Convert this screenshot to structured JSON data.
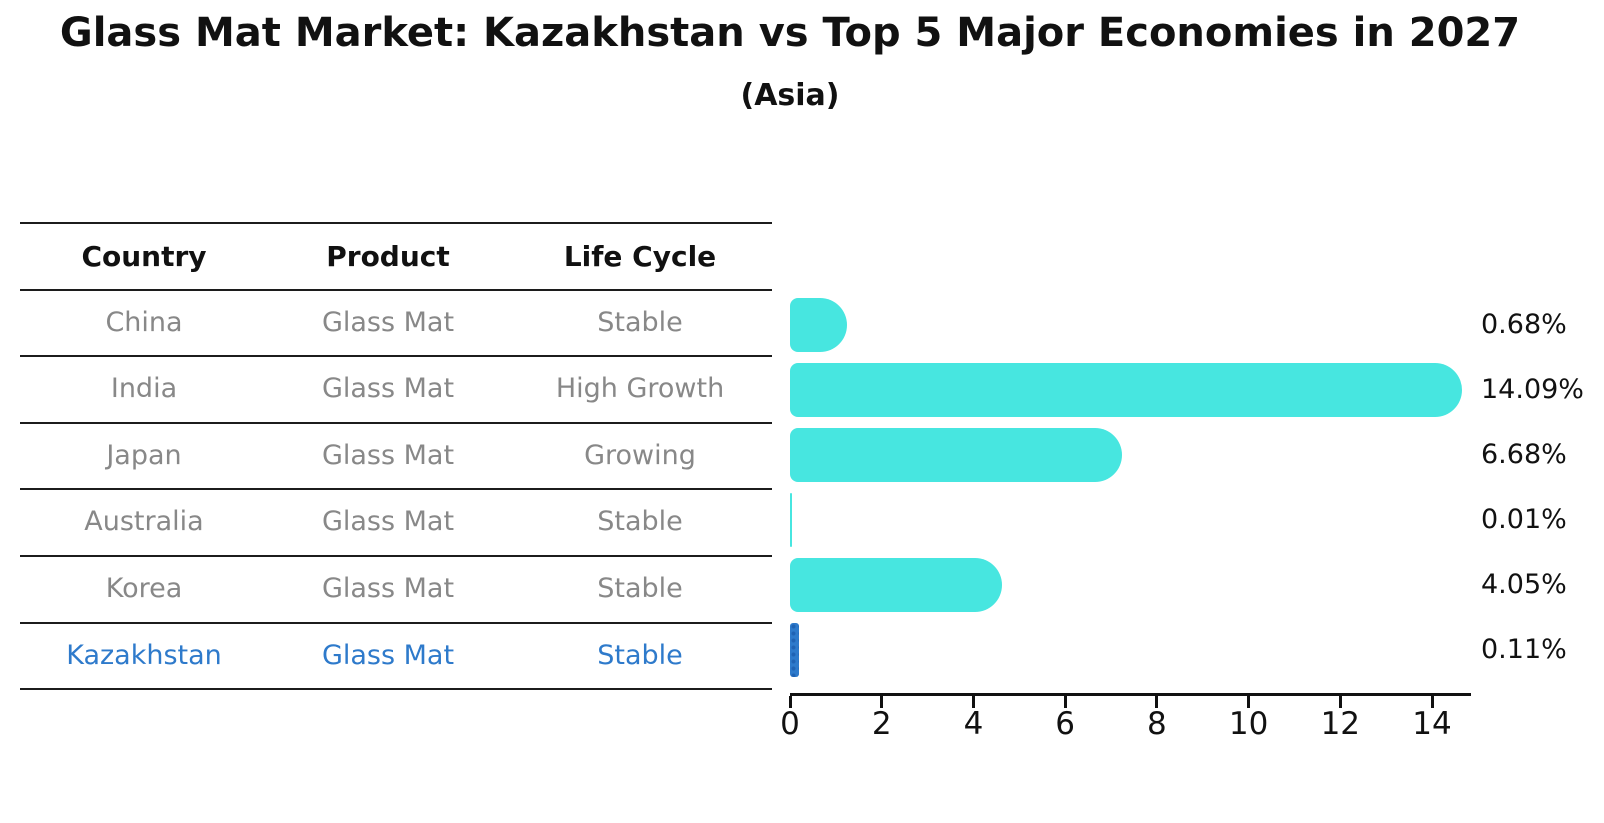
{
  "title": "Glass Mat Market: Kazakhstan vs Top 5 Major Economies in 2027",
  "subtitle": "(Asia)",
  "table": {
    "headers": [
      "Country",
      "Product",
      "Life Cycle"
    ],
    "rows": [
      {
        "country": "China",
        "product": "Glass Mat",
        "life_cycle": "Stable"
      },
      {
        "country": "India",
        "product": "Glass Mat",
        "life_cycle": "High Growth"
      },
      {
        "country": "Japan",
        "product": "Glass Mat",
        "life_cycle": "Growing"
      },
      {
        "country": "Australia",
        "product": "Glass Mat",
        "life_cycle": "Stable"
      },
      {
        "country": "Korea",
        "product": "Glass Mat",
        "life_cycle": "Stable"
      },
      {
        "country": "Kazakhstan",
        "product": "Glass Mat",
        "life_cycle": "Stable"
      }
    ],
    "highlight_row": 5
  },
  "chart_data": {
    "type": "bar",
    "orientation": "horizontal",
    "title": "Glass Mat Market: Kazakhstan vs Top 5 Major Economies in 2027",
    "subtitle": "(Asia)",
    "categories": [
      "China",
      "India",
      "Japan",
      "Australia",
      "Korea",
      "Kazakhstan"
    ],
    "values": [
      0.68,
      14.09,
      6.68,
      0.01,
      4.05,
      0.11
    ],
    "value_labels": [
      "0.68%",
      "14.09%",
      "6.68%",
      "0.01%",
      "4.05%",
      "0.11%"
    ],
    "xlabel": "",
    "ylabel": "",
    "xticks": [
      0,
      2,
      4,
      6,
      8,
      10,
      12,
      14
    ],
    "xlim": [
      0,
      14.8
    ],
    "grid": false,
    "legend": false,
    "bar_color": "#47E6E0",
    "highlight_color": "#2E7ACB",
    "highlight_index": 5,
    "label_color": "#111111",
    "muted_text_color": "#888888"
  }
}
